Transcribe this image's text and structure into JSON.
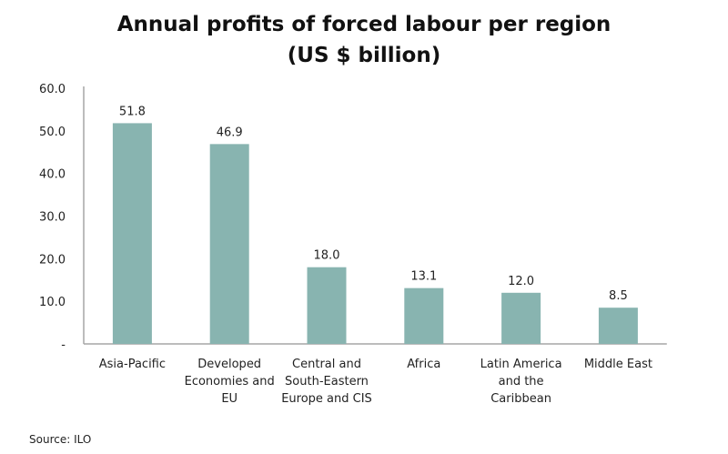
{
  "chart_data": {
    "type": "bar",
    "title": [
      "Annual profits of forced labour per region",
      "(US $ billion)"
    ],
    "categories": [
      [
        "Asia-Pacific"
      ],
      [
        "Developed",
        "Economies and",
        "EU"
      ],
      [
        "Central and",
        "South-Eastern",
        "Europe and CIS"
      ],
      [
        "Africa"
      ],
      [
        "Latin America",
        "and the",
        "Caribbean"
      ],
      [
        "Middle East"
      ]
    ],
    "values": [
      51.8,
      46.9,
      18.0,
      13.1,
      12.0,
      8.5
    ],
    "data_labels": [
      "51.8",
      "46.9",
      "18.0",
      "13.1",
      "12.0",
      "8.5"
    ],
    "ylim": [
      0,
      60
    ],
    "yticks": [
      0,
      10,
      20,
      30,
      40,
      50,
      60
    ],
    "ytick_labels": [
      "-",
      "10.0",
      "20.0",
      "30.0",
      "40.0",
      "50.0",
      "60.0"
    ],
    "grid": false,
    "legend": "none",
    "bar_color": "#88b4b0",
    "xlabel": "",
    "ylabel": ""
  },
  "source": "Source: ILO"
}
